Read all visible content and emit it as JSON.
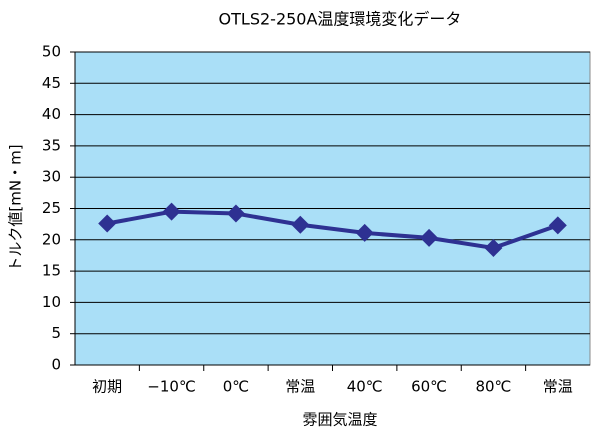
{
  "chart_data": {
    "type": "line",
    "title": "OTLS2-250A温度環境変化データ",
    "x_label": "雰囲気温度",
    "y_label": "トルク値[mN・m]",
    "categories": [
      "初期",
      "−10℃",
      "0℃",
      "常温",
      "40℃",
      "60℃",
      "80℃",
      "常温"
    ],
    "series": [
      {
        "name": "トルク値",
        "color": "#2e3192",
        "values": [
          22.6,
          24.5,
          24.2,
          22.4,
          21.1,
          20.3,
          18.7,
          22.3
        ]
      }
    ],
    "ylim": [
      0,
      50
    ],
    "yticks": [
      0,
      5,
      10,
      15,
      20,
      25,
      30,
      35,
      40,
      45,
      50
    ],
    "grid": true,
    "background": "#aadff7"
  }
}
